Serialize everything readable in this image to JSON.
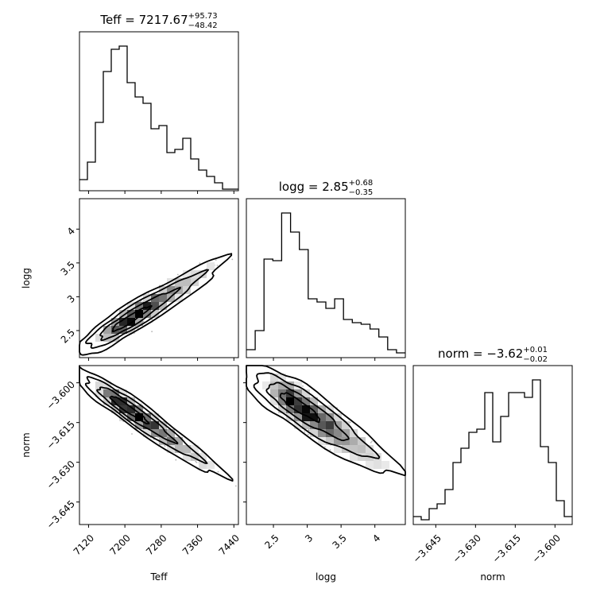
{
  "chart_data": {
    "type": "corner",
    "parameters": [
      {
        "name": "Teff",
        "label": "Teff",
        "range": [
          7100,
          7450
        ],
        "ticks": [
          7120,
          7200,
          7280,
          7360,
          7440
        ],
        "title": {
          "text": "Teff = 7217.67",
          "upper": "+95.73",
          "lower": "−48.42"
        }
      },
      {
        "name": "logg",
        "label": "logg",
        "range": [
          2.1,
          4.45
        ],
        "ticks": [
          2.5,
          3.0,
          3.5,
          4.0
        ],
        "title": {
          "text": "logg = 2.85",
          "upper": "+0.68",
          "lower": "−0.35"
        }
      },
      {
        "name": "norm",
        "label": "norm",
        "range": [
          -3.6535,
          -3.5935
        ],
        "ticks": [
          -3.645,
          -3.63,
          -3.615,
          -3.6
        ],
        "tick_labels": [
          "−3.645",
          "−3.630",
          "−3.615",
          "−3.600"
        ],
        "title": {
          "text": "norm = −3.62",
          "upper": "+0.01",
          "lower": "−0.02"
        }
      }
    ],
    "histograms": [
      {
        "param": "Teff",
        "values": [
          0.07,
          0.18,
          0.43,
          0.75,
          0.89,
          0.91,
          0.68,
          0.59,
          0.55,
          0.39,
          0.41,
          0.24,
          0.26,
          0.33,
          0.2,
          0.13,
          0.09,
          0.05,
          0.01,
          0.01
        ]
      },
      {
        "param": "logg",
        "values": [
          0.05,
          0.17,
          0.62,
          0.61,
          0.91,
          0.79,
          0.68,
          0.37,
          0.35,
          0.31,
          0.37,
          0.24,
          0.22,
          0.21,
          0.18,
          0.13,
          0.05,
          0.03
        ]
      },
      {
        "param": "norm",
        "values": [
          0.05,
          0.03,
          0.1,
          0.13,
          0.22,
          0.39,
          0.48,
          0.58,
          0.6,
          0.83,
          0.52,
          0.68,
          0.83,
          0.83,
          0.8,
          0.91,
          0.49,
          0.39,
          0.15,
          0.05
        ]
      }
    ],
    "correlations": [
      {
        "x": "Teff",
        "y": "logg",
        "center": [
          7200,
          2.62
        ],
        "spread": [
          55,
          0.25
        ],
        "rho": 0.93
      },
      {
        "x": "Teff",
        "y": "norm",
        "center": [
          7196,
          -3.6085
        ],
        "spread": [
          55,
          0.007
        ],
        "rho": -0.95
      },
      {
        "x": "logg",
        "y": "norm",
        "center": [
          2.8,
          -3.6075
        ],
        "spread": [
          0.38,
          0.0075
        ],
        "rho": -0.88
      }
    ],
    "contour_levels": [
      0.5,
      1.0,
      1.5,
      2.0
    ]
  }
}
